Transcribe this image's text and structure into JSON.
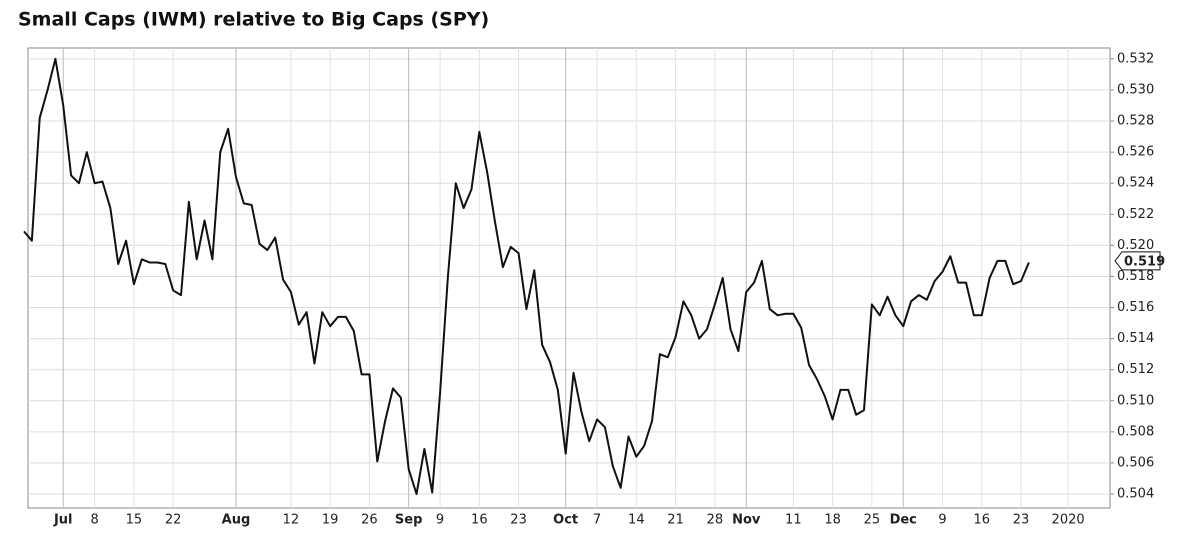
{
  "chart_data": {
    "type": "line",
    "title": "Small Caps (IWM) relative to Big Caps (SPY)",
    "categories": [
      null,
      null,
      null,
      null,
      null,
      "Jul",
      null,
      null,
      null,
      "8",
      null,
      null,
      null,
      null,
      "15",
      null,
      null,
      null,
      null,
      "22",
      null,
      null,
      null,
      null,
      null,
      null,
      null,
      "Aug",
      null,
      null,
      null,
      null,
      null,
      null,
      "12",
      null,
      null,
      null,
      null,
      "19",
      null,
      null,
      null,
      null,
      "26",
      null,
      null,
      null,
      null,
      "Sep",
      null,
      null,
      null,
      "9",
      null,
      null,
      null,
      null,
      "16",
      null,
      null,
      null,
      null,
      "23",
      null,
      null,
      null,
      null,
      null,
      "Oct",
      null,
      null,
      null,
      "7",
      null,
      null,
      null,
      null,
      "14",
      null,
      null,
      null,
      null,
      "21",
      null,
      null,
      null,
      null,
      "28",
      null,
      null,
      null,
      "Nov",
      null,
      null,
      null,
      null,
      null,
      "11",
      null,
      null,
      null,
      null,
      "18",
      null,
      null,
      null,
      null,
      "25",
      null,
      null,
      null,
      "Dec",
      null,
      null,
      null,
      null,
      "9",
      null,
      null,
      null,
      null,
      "16",
      null,
      null,
      null,
      null,
      "23",
      null,
      null,
      null,
      null,
      null,
      "2020",
      null,
      null,
      null,
      null
    ],
    "values": [
      0.5209,
      0.5203,
      0.5282,
      0.53,
      0.532,
      0.529,
      0.5245,
      0.524,
      0.526,
      0.524,
      0.5241,
      0.5224,
      0.5188,
      0.5203,
      0.5175,
      0.5191,
      0.5189,
      0.5189,
      0.5188,
      0.5171,
      0.5168,
      0.5228,
      0.5191,
      0.5216,
      0.5191,
      0.526,
      0.5275,
      0.5244,
      0.5227,
      0.5226,
      0.5201,
      0.5197,
      0.5205,
      0.5178,
      0.517,
      0.5149,
      0.5157,
      0.5124,
      0.5157,
      0.5148,
      0.5154,
      0.5154,
      0.5145,
      0.5117,
      0.5117,
      0.5061,
      0.5087,
      0.5108,
      0.5102,
      0.5056,
      0.504,
      0.5069,
      0.5041,
      0.5105,
      0.518,
      0.524,
      0.5224,
      0.5236,
      0.5273,
      0.5247,
      0.5215,
      0.5186,
      0.5199,
      0.5195,
      0.5159,
      0.5184,
      0.5136,
      0.5125,
      0.5107,
      0.5066,
      0.5118,
      0.5093,
      0.5074,
      0.5088,
      0.5083,
      0.5058,
      0.5044,
      0.5077,
      0.5064,
      0.5071,
      0.5087,
      0.513,
      0.5128,
      0.5141,
      0.5164,
      0.5155,
      0.514,
      0.5146,
      0.5162,
      0.5179,
      0.5146,
      0.5132,
      0.517,
      0.5176,
      0.519,
      0.5159,
      0.5155,
      0.5156,
      0.5156,
      0.5147,
      0.5123,
      0.5114,
      0.5103,
      0.5088,
      0.5107,
      0.5107,
      0.5091,
      0.5094,
      0.5162,
      0.5155,
      0.5167,
      0.5155,
      0.5148,
      0.5164,
      0.5168,
      0.5165,
      0.5177,
      0.5183,
      0.5193,
      0.5176,
      0.5176,
      0.5155,
      0.5155,
      0.5179,
      0.519,
      0.519,
      0.5175,
      0.5177,
      0.5189,
      null,
      null,
      null,
      null,
      null,
      null,
      null,
      null,
      null
    ],
    "color": "#111111",
    "current_value": 0.519,
    "ylim": [
      0.5031,
      0.5327
    ],
    "yticks": [
      0.504,
      0.506,
      0.508,
      {
        "value": 0.51,
        "label": "0.510"
      },
      0.512,
      0.514,
      0.516,
      0.518,
      {
        "value": 0.52,
        "label": "0.520"
      },
      0.522,
      0.524,
      0.526,
      0.528,
      {
        "value": 0.53,
        "label": "0.530"
      },
      0.532
    ],
    "grid": true
  }
}
